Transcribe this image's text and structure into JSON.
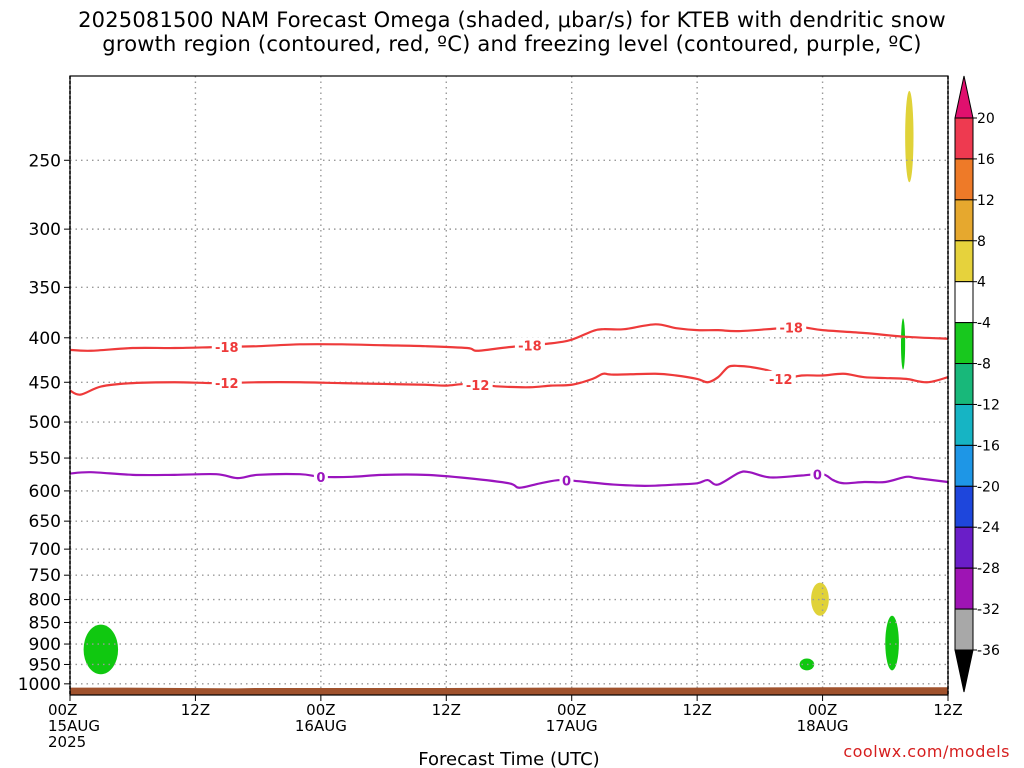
{
  "title": {
    "line1": "2025081500 NAM Forecast Omega (shaded, μbar/s) for KTEB with dendritic snow",
    "line2": "growth region (contoured, red, ºC) and freezing level (contoured, purple, ºC)"
  },
  "credit": "coolwx.com/models",
  "chart_data": {
    "type": "contour",
    "title": "2025081500 NAM Forecast Omega (shaded, μbar/s) for KTEB with dendritic snow growth region (contoured, red, ºC) and freezing level (contoured, purple, ºC)",
    "xlabel": "Forecast Time (UTC)",
    "ylabel": "",
    "x_range_hours": [
      0,
      84
    ],
    "y_range_hPa": [
      1030,
      200
    ],
    "y_scale": "log",
    "grid": true,
    "x_ticks": [
      {
        "hour": 0,
        "label": [
          "00Z",
          "15AUG",
          "2025"
        ]
      },
      {
        "hour": 12,
        "label": [
          "12Z"
        ]
      },
      {
        "hour": 24,
        "label": [
          "00Z",
          "16AUG"
        ]
      },
      {
        "hour": 36,
        "label": [
          "12Z"
        ]
      },
      {
        "hour": 48,
        "label": [
          "00Z",
          "17AUG"
        ]
      },
      {
        "hour": 60,
        "label": [
          "12Z"
        ]
      },
      {
        "hour": 72,
        "label": [
          "00Z",
          "18AUG"
        ]
      },
      {
        "hour": 84,
        "label": [
          "12Z"
        ]
      }
    ],
    "y_ticks": [
      250,
      300,
      350,
      400,
      450,
      500,
      550,
      600,
      650,
      700,
      750,
      800,
      850,
      900,
      950,
      1000
    ],
    "colorbar": {
      "labels": [
        "20",
        "16",
        "12",
        "8",
        "4",
        "-4",
        "-8",
        "-12",
        "-16",
        "-20",
        "-24",
        "-28",
        "-32",
        "-36"
      ],
      "bins": [
        {
          "color": "#ee3a50",
          "range": "16 to 20"
        },
        {
          "color": "#ee7a28",
          "range": "12 to 16"
        },
        {
          "color": "#e6a82e",
          "range": "8 to 12"
        },
        {
          "color": "#e6d23c",
          "range": "4 to 8"
        },
        {
          "color": "#ffffff",
          "range": "-4 to 4"
        },
        {
          "color": "#18c81e",
          "range": "-8 to -4"
        },
        {
          "color": "#18b87a",
          "range": "-12 to -8"
        },
        {
          "color": "#16b4c4",
          "range": "-16 to -12"
        },
        {
          "color": "#1e96e6",
          "range": "-20 to -16"
        },
        {
          "color": "#1e46dc",
          "range": "-24 to -20"
        },
        {
          "color": "#6a1ec8",
          "range": "-28 to -24"
        },
        {
          "color": "#9e14b4",
          "range": "-32 to -28"
        },
        {
          "color": "#a8a8a8",
          "range": "-36 to -32"
        }
      ],
      "top_arrow_color": "#e0106e",
      "bottom_arrow_color": "#000000"
    },
    "contours": [
      {
        "name": "-18",
        "color": "#ee3a3a",
        "x": [
          0,
          2,
          6,
          10,
          14,
          18,
          22,
          26,
          30,
          34,
          38,
          39,
          42,
          46,
          48,
          50,
          51,
          53,
          56,
          58,
          60,
          62,
          64,
          68,
          70,
          72,
          76,
          80,
          84
        ],
        "y": [
          413,
          414,
          411,
          411,
          410,
          409,
          407,
          407,
          408,
          409,
          411,
          414,
          410,
          406,
          402,
          393,
          391,
          391,
          386,
          390,
          392,
          392,
          393,
          390,
          389,
          392,
          395,
          399,
          401
        ],
        "labels": [
          {
            "x": 15,
            "text": "-18"
          },
          {
            "x": 44,
            "text": "-18"
          },
          {
            "x": 69,
            "text": "-18"
          }
        ]
      },
      {
        "name": "-12",
        "color": "#ee3a3a",
        "x": [
          0,
          1,
          3,
          6,
          10,
          14,
          18,
          22,
          26,
          30,
          34,
          36,
          38,
          41,
          44,
          46,
          48,
          50,
          51,
          52,
          56,
          58,
          60,
          61,
          62,
          63,
          64,
          65,
          67,
          68,
          70,
          72,
          74,
          76,
          78,
          80,
          82,
          84
        ],
        "y": [
          460,
          465,
          455,
          451,
          450,
          451,
          450,
          450,
          451,
          452,
          453,
          454,
          452,
          455,
          456,
          454,
          453,
          446,
          440,
          441,
          440,
          442,
          446,
          450,
          444,
          432,
          431,
          432,
          437,
          446,
          442,
          442,
          440,
          444,
          445,
          446,
          450,
          444
        ],
        "labels": [
          {
            "x": 15,
            "text": "-12"
          },
          {
            "x": 39,
            "text": "-12"
          },
          {
            "x": 68,
            "text": "-12"
          }
        ]
      },
      {
        "name": "0",
        "color": "#9a14be",
        "x": [
          0,
          2,
          6,
          10,
          14,
          16,
          18,
          22,
          24,
          27,
          30,
          34,
          38,
          42,
          43,
          45,
          47,
          50,
          52,
          55,
          58,
          60,
          61,
          62,
          64,
          65,
          67,
          70,
          72,
          73,
          74,
          76,
          78,
          80,
          81,
          84
        ],
        "y": [
          573,
          571,
          575,
          575,
          574,
          580,
          575,
          574,
          578,
          578,
          575,
          575,
          580,
          588,
          595,
          588,
          583,
          587,
          590,
          592,
          590,
          588,
          583,
          590,
          572,
          571,
          579,
          576,
          574,
          583,
          588,
          586,
          586,
          578,
          580,
          586
        ],
        "labels": [
          {
            "x": 24,
            "text": "0"
          },
          {
            "x": 47.5,
            "text": "0"
          },
          {
            "x": 71.5,
            "text": "0"
          }
        ]
      }
    ],
    "shaded_regions": [
      {
        "name": "omega-negative-green",
        "color": "#10c810",
        "value_range": "-8 to -4",
        "hours": [
          1.3,
          4.6
        ],
        "pressure_hPa": [
          855,
          975
        ]
      },
      {
        "name": "omega-negative-green",
        "color": "#10c810",
        "value_range": "-8 to -4",
        "hours": [
          69.8,
          71.2
        ],
        "pressure_hPa": [
          935,
          965
        ]
      },
      {
        "name": "omega-negative-green",
        "color": "#10c810",
        "value_range": "-8 to -4",
        "hours": [
          78.0,
          79.3
        ],
        "pressure_hPa": [
          835,
          965
        ]
      },
      {
        "name": "omega-negative-green",
        "color": "#10c810",
        "value_range": "-8 to -4",
        "hours": [
          79.5,
          79.9
        ],
        "pressure_hPa": [
          380,
          435
        ]
      },
      {
        "name": "omega-positive-yellow",
        "color": "#e0d238",
        "value_range": "4 to 8",
        "hours": [
          70.9,
          72.6
        ],
        "pressure_hPa": [
          765,
          835
        ]
      },
      {
        "name": "omega-positive-yellow",
        "color": "#e0d238",
        "value_range": "4 to 8",
        "hours": [
          79.9,
          80.7
        ],
        "pressure_hPa": [
          208,
          265
        ]
      }
    ],
    "terrain": {
      "color": "#a0522d",
      "top_hPa": [
        1010,
        1010,
        1012,
        1011,
        1011,
        1011,
        1010,
        1010,
        1009,
        1009
      ],
      "hours": [
        0,
        5,
        16,
        18,
        24,
        36,
        46,
        60,
        72,
        84
      ]
    }
  }
}
